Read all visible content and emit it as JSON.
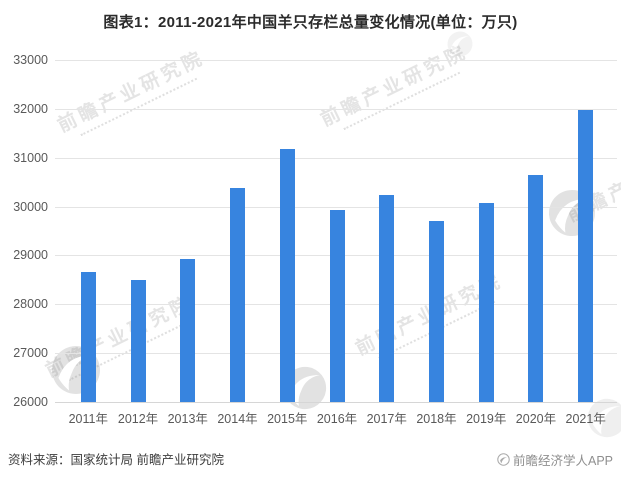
{
  "page": {
    "title": "图表1：2011-2021年中国羊只存栏总量变化情况(单位：万只)"
  },
  "chart_data": {
    "type": "bar",
    "title": "图表1：2011-2021年中国羊只存栏总量变化情况",
    "unit_label": "单位：万只",
    "categories": [
      "2011年",
      "2012年",
      "2013年",
      "2014年",
      "2015年",
      "2016年",
      "2017年",
      "2018年",
      "2019年",
      "2020年",
      "2021年"
    ],
    "values": [
      28652,
      28502,
      28921,
      30385,
      31182,
      29932,
      30232,
      29713,
      30072,
      30655,
      31969
    ],
    "xlabel": "",
    "ylabel": "",
    "ylim": [
      26000,
      33000
    ],
    "yticks": [
      26000,
      27000,
      28000,
      29000,
      30000,
      31000,
      32000,
      33000
    ],
    "grid": true,
    "legend_position": "none",
    "bar_color": "#3784DF",
    "gridline_color": "#e4e4e4"
  },
  "watermark": {
    "text": "前瞻产业研究院"
  },
  "footer": {
    "source": "资料来源：国家统计局 前瞻产业研究院",
    "brand": "前瞻经济学人APP"
  }
}
